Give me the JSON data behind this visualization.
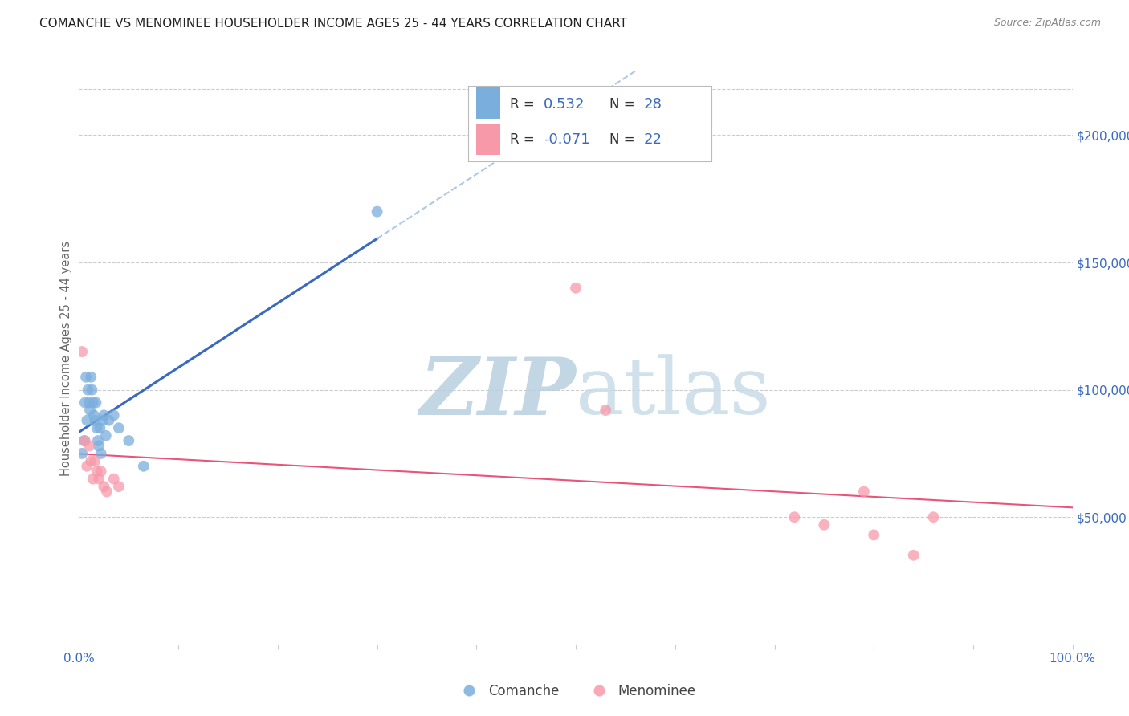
{
  "title": "COMANCHE VS MENOMINEE HOUSEHOLDER INCOME AGES 25 - 44 YEARS CORRELATION CHART",
  "source": "Source: ZipAtlas.com",
  "ylabel": "Householder Income Ages 25 - 44 years",
  "yticks_labels": [
    "$50,000",
    "$100,000",
    "$150,000",
    "$200,000"
  ],
  "yticks_values": [
    50000,
    100000,
    150000,
    200000
  ],
  "ylim": [
    0,
    225000
  ],
  "xlim": [
    0,
    1.0
  ],
  "comanche_R": "0.532",
  "comanche_N": "28",
  "menominee_R": "-0.071",
  "menominee_N": "22",
  "comanche_color": "#7aaedd",
  "menominee_color": "#f899aa",
  "comanche_line_color": "#3a6abf",
  "menominee_line_color": "#e8547a",
  "dashed_line_color": "#aec8e8",
  "background_color": "#ffffff",
  "grid_color": "#cccccc",
  "comanche_x": [
    0.003,
    0.005,
    0.006,
    0.007,
    0.008,
    0.009,
    0.01,
    0.011,
    0.012,
    0.013,
    0.014,
    0.015,
    0.016,
    0.017,
    0.018,
    0.019,
    0.02,
    0.021,
    0.022,
    0.024,
    0.025,
    0.027,
    0.03,
    0.035,
    0.04,
    0.05,
    0.065,
    0.3
  ],
  "comanche_y": [
    75000,
    80000,
    95000,
    105000,
    88000,
    100000,
    95000,
    92000,
    105000,
    100000,
    95000,
    90000,
    88000,
    95000,
    85000,
    80000,
    78000,
    85000,
    75000,
    88000,
    90000,
    82000,
    88000,
    90000,
    85000,
    80000,
    70000,
    170000
  ],
  "menominee_x": [
    0.003,
    0.006,
    0.008,
    0.01,
    0.012,
    0.014,
    0.016,
    0.018,
    0.02,
    0.022,
    0.025,
    0.028,
    0.035,
    0.04,
    0.5,
    0.53,
    0.72,
    0.75,
    0.79,
    0.8,
    0.84,
    0.86
  ],
  "menominee_y": [
    115000,
    80000,
    70000,
    78000,
    72000,
    65000,
    72000,
    68000,
    65000,
    68000,
    62000,
    60000,
    65000,
    62000,
    140000,
    92000,
    50000,
    47000,
    60000,
    43000,
    35000,
    50000
  ],
  "watermark_zip": "ZIP",
  "watermark_atlas": "atlas",
  "watermark_color": "#c8d8e8"
}
